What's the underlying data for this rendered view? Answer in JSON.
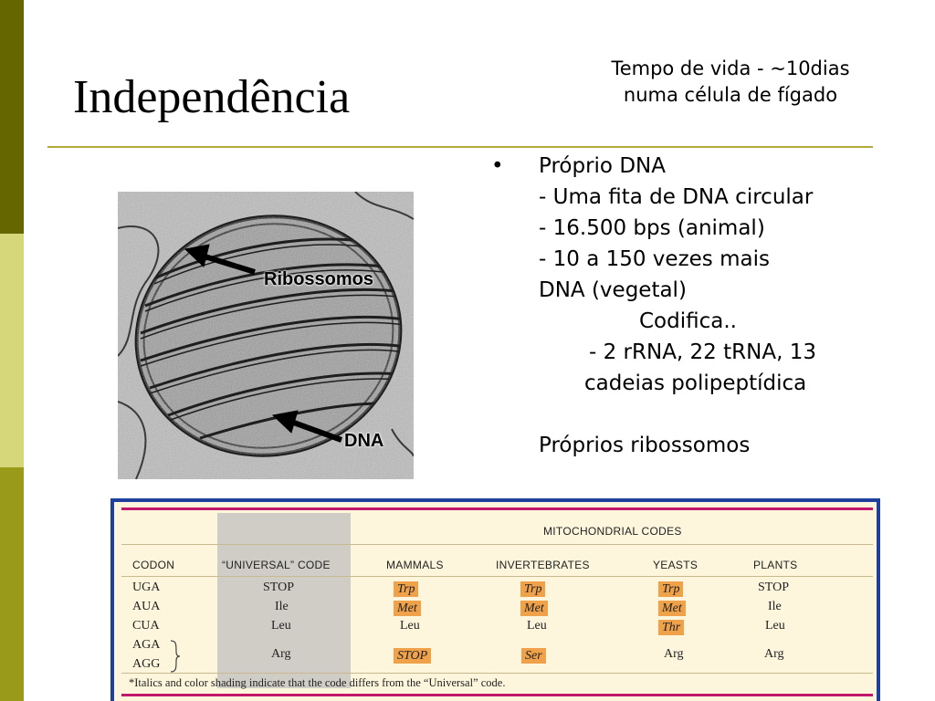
{
  "slide": {
    "title": "Independência",
    "lifespan_lines": [
      "Tempo de vida - ~10dias",
      "numa célula de fígado"
    ]
  },
  "image": {
    "label_ribosomes": "Ribossomos",
    "label_dna": "DNA"
  },
  "bullets": {
    "marker": "•",
    "lines": [
      "Próprio DNA",
      "-  Uma fita de DNA circular",
      "-   16.500 bps (animal)",
      "-   10 a 150 vezes mais",
      "DNA (vegetal)",
      "Codifica..",
      "-    2 rRNA, 22 tRNA, 13",
      "cadeias polipeptídica",
      "Próprios ribossomos"
    ]
  },
  "codon_table": {
    "group_header": "MITOCHONDRIAL CODES",
    "headers": [
      "CODON",
      "“UNIVERSAL” CODE",
      "MAMMALS",
      "INVERTEBRATES",
      "YEASTS",
      "PLANTS"
    ],
    "rows": [
      {
        "codon": "UGA",
        "universal": "STOP",
        "mammals": "Trp",
        "invertebrates": "Trp",
        "yeasts": "Trp",
        "plants": "STOP"
      },
      {
        "codon": "AUA",
        "universal": "Ile",
        "mammals": "Met",
        "invertebrates": "Met",
        "yeasts": "Met",
        "plants": "Ile"
      },
      {
        "codon": "CUA",
        "universal": "Leu",
        "mammals": "Leu",
        "invertebrates": "Leu",
        "yeasts": "Thr",
        "plants": "Leu"
      }
    ],
    "aga_codons": [
      "AGA",
      "AGG"
    ],
    "aga_row": {
      "universal": "Arg",
      "mammals": "STOP",
      "invertebrates": "Ser",
      "yeasts": "Arg",
      "plants": "Arg"
    },
    "footnote": "*Italics and color shading indicate that the code differs from the “Universal” code."
  },
  "colors": {
    "sidebar_dark": "#666600",
    "sidebar_mid": "#9a9a1a",
    "sidebar_light": "#d6d67a",
    "rule": "#b4aa3a",
    "table_border": "#1f3f9e",
    "table_accent": "#c2186b",
    "highlight": "#f0a24a"
  }
}
